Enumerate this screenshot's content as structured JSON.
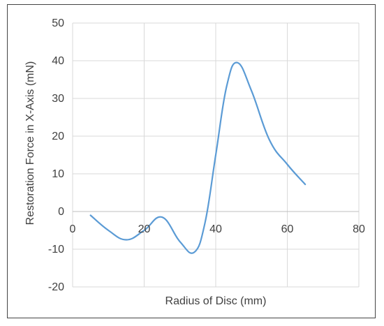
{
  "chart_data": {
    "type": "scatter",
    "title": "",
    "xlabel": "Radius of Disc (mm)",
    "ylabel": "Restoration Force in X-Axis (mN)",
    "xlim": [
      0,
      80
    ],
    "ylim": [
      -20,
      50
    ],
    "xticks": [
      0,
      20,
      40,
      60,
      80
    ],
    "yticks": [
      -20,
      -10,
      0,
      10,
      20,
      30,
      40,
      50
    ],
    "grid": true,
    "legend": "none",
    "series": [
      {
        "color": "#5b9bd5",
        "line": "smooth",
        "points": [
          [
            5,
            -1
          ],
          [
            10,
            -5
          ],
          [
            15,
            -7.5
          ],
          [
            20,
            -5
          ],
          [
            25,
            -1.5
          ],
          [
            30,
            -8
          ],
          [
            34,
            -10.8
          ],
          [
            37,
            -3
          ],
          [
            40,
            15
          ],
          [
            43,
            33
          ],
          [
            46,
            39.5
          ],
          [
            50,
            32
          ],
          [
            55,
            19
          ],
          [
            60,
            12.5
          ],
          [
            65,
            7.2
          ]
        ]
      }
    ]
  }
}
